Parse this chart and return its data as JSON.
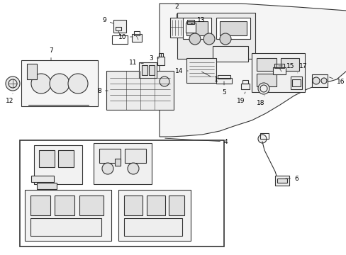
{
  "bg_color": "#ffffff",
  "line_color": "#333333",
  "label_color": "#000000",
  "figsize": [
    4.89,
    3.6
  ],
  "dpi": 100
}
